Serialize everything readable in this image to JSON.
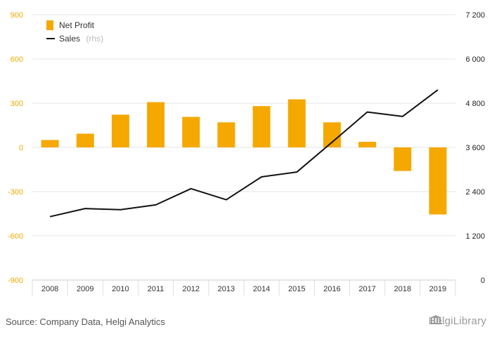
{
  "chart_data": {
    "type": "bar",
    "categories": [
      "2008",
      "2009",
      "2010",
      "2011",
      "2012",
      "2013",
      "2014",
      "2015",
      "2016",
      "2017",
      "2018",
      "2019"
    ],
    "series": [
      {
        "name": "Net Profit",
        "type": "bar",
        "axis": "left",
        "color": "#f5a800",
        "values": [
          50,
          93,
          222,
          307,
          207,
          170,
          280,
          326,
          170,
          38,
          -160,
          -455
        ]
      },
      {
        "name": "Sales",
        "type": "line",
        "axis": "right",
        "color": "#111111",
        "values": [
          1720,
          1940,
          1910,
          2040,
          2480,
          2180,
          2800,
          2930,
          3740,
          4560,
          4440,
          5160
        ]
      }
    ],
    "legend": {
      "placement": "top-left",
      "items": [
        {
          "label": "Net Profit",
          "suffix": ""
        },
        {
          "label": "Sales",
          "suffix": "(rhs)"
        }
      ]
    },
    "left_axis": {
      "ylim": [
        -900,
        900
      ],
      "ticks": [
        900,
        600,
        300,
        0,
        -300,
        -600,
        -900
      ],
      "tick_labels": [
        "900",
        "600",
        "300",
        "0",
        "-300",
        "-600",
        "-900"
      ]
    },
    "right_axis": {
      "ylim": [
        0,
        7200
      ],
      "ticks": [
        7200,
        6000,
        4800,
        3600,
        2400,
        1200,
        0
      ],
      "tick_labels": [
        "7 200",
        "6 000",
        "4 800",
        "3 600",
        "2 400",
        "1 200",
        "0"
      ]
    },
    "grid": "horizontal"
  },
  "footer": {
    "source": "Source: Company Data, Helgi Analytics",
    "brand": "HelgiLibrary"
  }
}
